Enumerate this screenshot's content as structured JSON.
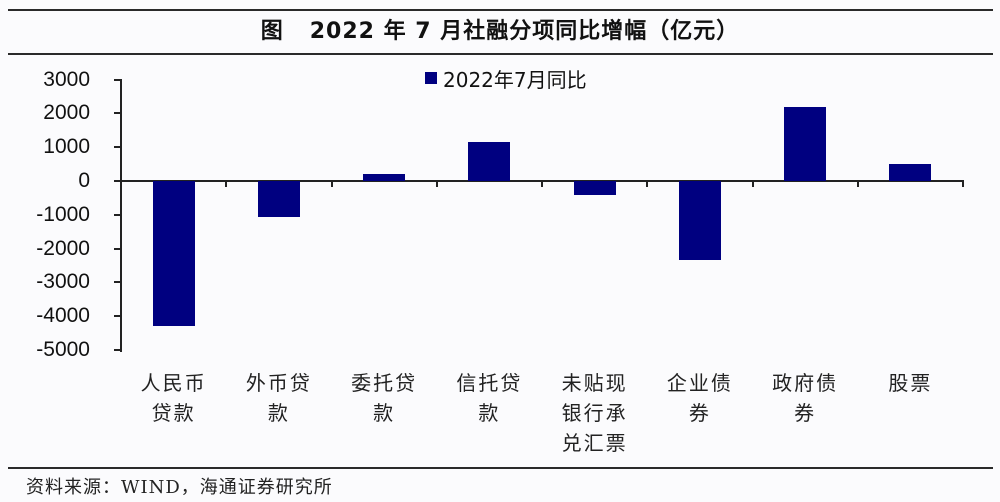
{
  "header": {
    "fig_label": "图",
    "title": "2022 年 7 月社融分项同比增幅（亿元）"
  },
  "legend": {
    "label": "2022年7月同比"
  },
  "y_axis": {
    "ticks": [
      "3000",
      "2000",
      "1000",
      "0",
      "-1000",
      "-2000",
      "-3000",
      "-4000",
      "-5000"
    ]
  },
  "categories": [
    {
      "lines": [
        "人民币",
        "贷款"
      ]
    },
    {
      "lines": [
        "外币贷",
        "款"
      ]
    },
    {
      "lines": [
        "委托贷",
        "款"
      ]
    },
    {
      "lines": [
        "信托贷",
        "款"
      ]
    },
    {
      "lines": [
        "未贴现",
        "银行承",
        "兑汇票"
      ]
    },
    {
      "lines": [
        "企业债",
        "券"
      ]
    },
    {
      "lines": [
        "政府债",
        "券"
      ]
    },
    {
      "lines": [
        "股票"
      ]
    }
  ],
  "footer": {
    "source": "资料来源：WIND，海通证券研究所"
  },
  "colors": {
    "bar": "#000080",
    "rule": "#2a2a2a"
  },
  "chart_data": {
    "type": "bar",
    "title": "2022年7月社融分项同比增幅（亿元）",
    "categories": [
      "人民币贷款",
      "外币贷款",
      "委托贷款",
      "信托贷款",
      "未贴现银行承兑汇票",
      "企业债券",
      "政府债券",
      "股票"
    ],
    "series": [
      {
        "name": "2022年7月同比",
        "values": [
          -4290,
          -1060,
          200,
          1150,
          -410,
          -2340,
          2190,
          500
        ]
      }
    ],
    "xlabel": "",
    "ylabel": "",
    "ylim": [
      -5000,
      3000
    ],
    "yticks": [
      3000,
      2000,
      1000,
      0,
      -1000,
      -2000,
      -3000,
      -4000,
      -5000
    ],
    "grid": false,
    "legend_position": "top-center"
  }
}
